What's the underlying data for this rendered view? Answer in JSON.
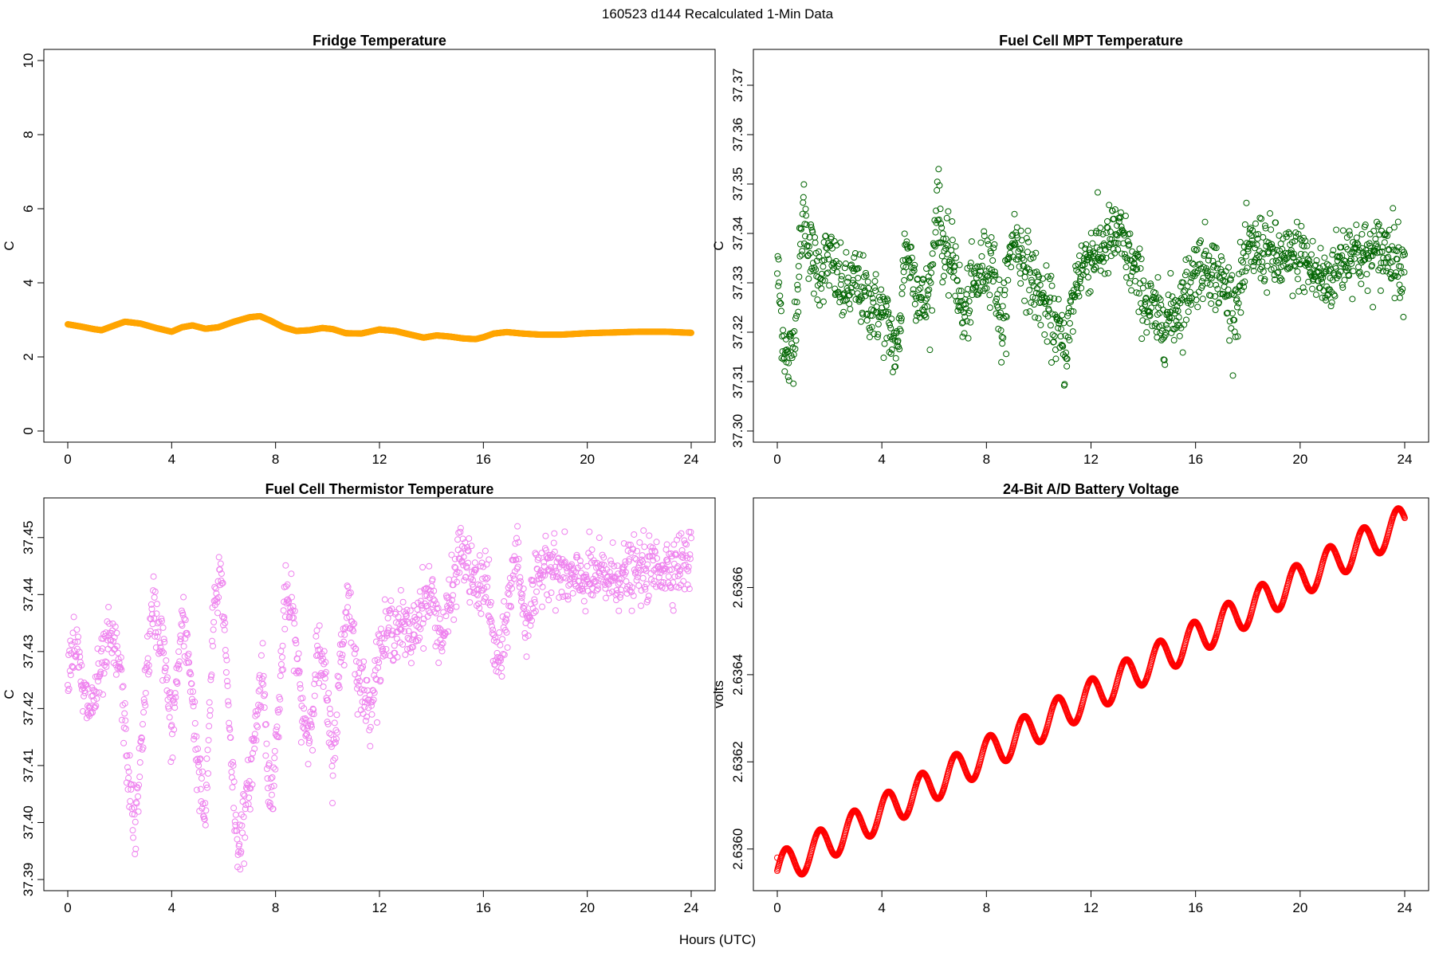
{
  "figure": {
    "title": "160523   d144   Recalculated 1-Min Data",
    "xlabel": "Hours (UTC)"
  },
  "chart_data": [
    {
      "type": "scatter",
      "title": "Fridge Temperature",
      "xlabel": "",
      "ylabel": "C",
      "color": "#FFA500",
      "xlim": [
        0,
        24
      ],
      "ylim": [
        0,
        10
      ],
      "xticks": [
        0,
        4,
        8,
        12,
        16,
        20,
        24
      ],
      "yticks": [
        0,
        2,
        4,
        6,
        8,
        10
      ],
      "ytick_labels": [
        "0",
        "2",
        "4",
        "6",
        "8",
        "10"
      ],
      "x": [
        0,
        0.5,
        1,
        1.3,
        1.8,
        2.2,
        2.8,
        3.4,
        4,
        4.4,
        4.8,
        5.3,
        5.8,
        6.4,
        7,
        7.4,
        7.8,
        8.3,
        8.8,
        9.3,
        9.8,
        10.2,
        10.7,
        11.3,
        12,
        12.6,
        13.2,
        13.7,
        14.2,
        14.7,
        15.2,
        15.7,
        16,
        16.4,
        16.9,
        17.5,
        18.2,
        19,
        20,
        21,
        22,
        23,
        24
      ],
      "y": [
        2.88,
        2.82,
        2.75,
        2.72,
        2.85,
        2.95,
        2.9,
        2.78,
        2.68,
        2.8,
        2.85,
        2.76,
        2.8,
        2.95,
        3.07,
        3.1,
        2.98,
        2.8,
        2.7,
        2.72,
        2.78,
        2.75,
        2.64,
        2.63,
        2.74,
        2.7,
        2.6,
        2.52,
        2.58,
        2.55,
        2.5,
        2.48,
        2.53,
        2.63,
        2.67,
        2.63,
        2.6,
        2.6,
        2.64,
        2.66,
        2.68,
        2.68,
        2.65
      ],
      "interpolate": true
    },
    {
      "type": "scatter",
      "title": "Fuel Cell MPT Temperature",
      "xlabel": "",
      "ylabel": "C",
      "color": "#006400",
      "xlim": [
        0,
        24
      ],
      "ylim": [
        37.3,
        37.375
      ],
      "xticks": [
        0,
        4,
        8,
        12,
        16,
        20,
        24
      ],
      "yticks": [
        37.3,
        37.31,
        37.32,
        37.33,
        37.34,
        37.35,
        37.36,
        37.37
      ],
      "ytick_labels": [
        "37.30",
        "37.31",
        "37.32",
        "37.33",
        "37.34",
        "37.35",
        "37.36",
        "37.37"
      ],
      "x": [
        0,
        0.2,
        0.4,
        0.6,
        0.8,
        1.0,
        1.2,
        1.5,
        2.0,
        2.5,
        3.0,
        3.5,
        4.0,
        4.3,
        4.6,
        4.9,
        5.2,
        5.6,
        5.9,
        6.1,
        6.4,
        6.8,
        7.1,
        7.4,
        7.8,
        8.2,
        8.6,
        9.0,
        9.4,
        9.8,
        10.2,
        10.6,
        11.0,
        11.5,
        12.0,
        12.5,
        13.0,
        13.4,
        13.8,
        14.2,
        14.6,
        15.0,
        15.5,
        16.0,
        16.5,
        17.0,
        17.5,
        18.0,
        18.5,
        19.0,
        19.5,
        20.0,
        20.5,
        21.0,
        21.5,
        22.0,
        22.5,
        23.0,
        23.5,
        24.0
      ],
      "y": [
        37.333,
        37.32,
        37.313,
        37.318,
        37.33,
        37.345,
        37.338,
        37.332,
        37.335,
        37.328,
        37.33,
        37.326,
        37.324,
        37.32,
        37.315,
        37.338,
        37.332,
        37.325,
        37.33,
        37.348,
        37.335,
        37.334,
        37.322,
        37.328,
        37.332,
        37.336,
        37.32,
        37.34,
        37.335,
        37.33,
        37.326,
        37.322,
        37.316,
        37.332,
        37.336,
        37.337,
        37.34,
        37.336,
        37.33,
        37.325,
        37.322,
        37.323,
        37.326,
        37.333,
        37.334,
        37.33,
        37.325,
        37.336,
        37.337,
        37.335,
        37.334,
        37.336,
        37.332,
        37.33,
        37.334,
        37.337,
        37.335,
        37.336,
        37.337,
        37.332
      ],
      "noise": 0.008
    },
    {
      "type": "scatter",
      "title": "Fuel Cell Thermistor Temperature",
      "xlabel": "",
      "ylabel": "C",
      "color": "#EE82EE",
      "xlim": [
        0,
        24
      ],
      "ylim": [
        37.39,
        37.455
      ],
      "xticks": [
        0,
        4,
        8,
        12,
        16,
        20,
        24
      ],
      "yticks": [
        37.39,
        37.4,
        37.41,
        37.42,
        37.43,
        37.44,
        37.45
      ],
      "ytick_labels": [
        "37.39",
        "37.40",
        "37.41",
        "37.42",
        "37.43",
        "37.44",
        "37.45"
      ],
      "x": [
        0,
        0.3,
        0.6,
        0.9,
        1.2,
        1.6,
        2.0,
        2.3,
        2.6,
        3.0,
        3.3,
        3.7,
        4.0,
        4.4,
        4.7,
        5.0,
        5.3,
        5.6,
        5.9,
        6.2,
        6.5,
        6.8,
        7.2,
        7.5,
        7.8,
        8.1,
        8.4,
        8.7,
        9.0,
        9.3,
        9.6,
        9.9,
        10.2,
        10.5,
        10.8,
        11.2,
        11.6,
        12.0,
        12.4,
        12.8,
        13.2,
        13.6,
        14.0,
        14.4,
        14.8,
        15.1,
        15.4,
        15.8,
        16.1,
        16.4,
        16.7,
        17.0,
        17.3,
        17.6,
        18.0,
        18.4,
        18.8,
        19.2,
        19.6,
        20.0,
        21.0,
        22.0,
        23.0,
        24.0
      ],
      "y": [
        37.428,
        37.432,
        37.422,
        37.42,
        37.425,
        37.432,
        37.428,
        37.41,
        37.398,
        37.425,
        37.438,
        37.43,
        37.415,
        37.435,
        37.428,
        37.41,
        37.4,
        37.435,
        37.445,
        37.42,
        37.396,
        37.4,
        37.415,
        37.428,
        37.402,
        37.418,
        37.44,
        37.435,
        37.42,
        37.415,
        37.43,
        37.425,
        37.41,
        37.428,
        37.44,
        37.425,
        37.42,
        37.43,
        37.434,
        37.435,
        37.432,
        37.438,
        37.44,
        37.432,
        37.44,
        37.448,
        37.445,
        37.44,
        37.444,
        37.43,
        37.428,
        37.44,
        37.448,
        37.435,
        37.44,
        37.447,
        37.444,
        37.443,
        37.442,
        37.443,
        37.443,
        37.444,
        37.445,
        37.446
      ],
      "noise": 0.006
    },
    {
      "type": "scatter",
      "title": "24-Bit A/D Battery Voltage",
      "xlabel": "",
      "ylabel": "volts",
      "color": "#FF0000",
      "xlim": [
        0,
        24
      ],
      "ylim": [
        2.63593,
        2.63678
      ],
      "xticks": [
        0,
        4,
        8,
        12,
        16,
        20,
        24
      ],
      "yticks": [
        2.636,
        2.6362,
        2.6364,
        2.6366
      ],
      "ytick_labels": [
        "2.6360",
        "2.6362",
        "2.6364",
        "2.6366"
      ],
      "x_start": 0,
      "x_end": 24,
      "y_start": 2.63595,
      "y_end": 2.63675,
      "osc_period_hours": 1.3,
      "osc_amplitude": 4e-05,
      "outlier": [
        0,
        2.63598
      ]
    }
  ]
}
